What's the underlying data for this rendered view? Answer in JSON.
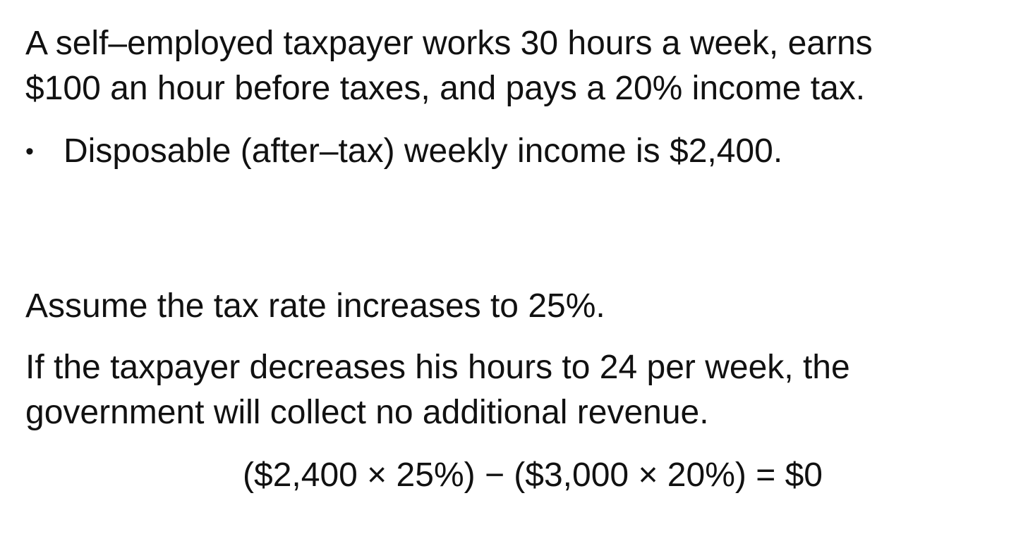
{
  "intro": {
    "line1": "A self–employed taxpayer works 30 hours a week, earns",
    "line2": "$100 an hour before taxes, and pays a 20% income tax."
  },
  "bullet": {
    "symbol": "•",
    "text": "Disposable (after–tax) weekly income is $2,400."
  },
  "assumption": "Assume the tax rate increases to 25%.",
  "conclusion": {
    "line1": "If the taxpayer decreases his hours to 24 per week, the",
    "line2": "government will collect no additional revenue."
  },
  "equation": "($2,400 × 25%) − ($3,000 × 20%) = $0"
}
